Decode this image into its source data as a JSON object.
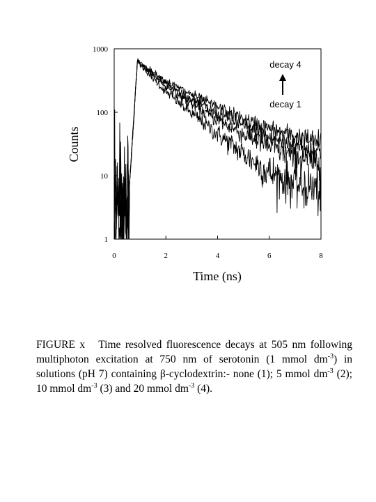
{
  "chart_data": {
    "type": "line",
    "title": "",
    "xlabel": "Time (ns)",
    "ylabel": "Counts",
    "xlim": [
      0,
      8
    ],
    "ylim": [
      1,
      1000
    ],
    "yscale": "log",
    "x_ticks": [
      "0",
      "2",
      "4",
      "6",
      "8"
    ],
    "y_ticks": [
      "1",
      "10",
      "100",
      "1000"
    ],
    "grid": false,
    "legend": "none",
    "annotations": {
      "top": "decay 4",
      "bottom": "decay 1"
    },
    "peak": {
      "x": 0.9,
      "y": 660
    },
    "series": [
      {
        "x": [
          1,
          2,
          3,
          4,
          5,
          6,
          7,
          8
        ],
        "values": [
          560,
          210,
          95,
          45,
          22,
          11,
          7.5,
          6
        ]
      },
      {
        "x": [
          1,
          2,
          3,
          4,
          5,
          6,
          7,
          8
        ],
        "values": [
          580,
          260,
          135,
          75,
          45,
          29,
          20,
          16
        ]
      },
      {
        "x": [
          1,
          2,
          3,
          4,
          5,
          6,
          7,
          8
        ],
        "values": [
          590,
          280,
          160,
          95,
          60,
          40,
          30,
          24
        ]
      },
      {
        "x": [
          1,
          2,
          3,
          4,
          5,
          6,
          7,
          8
        ],
        "values": [
          600,
          310,
          190,
          120,
          78,
          55,
          42,
          33
        ]
      }
    ]
  },
  "caption": {
    "label": "FIGURE x",
    "p1": "Time resolved fluorescence decays at 505 nm following multiphoton excitation at 750 nm of serotonin (1 mmol dm",
    "sup1": "-3",
    "p2": ") in solutions (pH 7) containing ",
    "beta": "β",
    "p3": "-cyclodextrin:- none (1); 5 mmol dm",
    "sup2": "-3",
    "p4": " (2); 10 mmol dm",
    "sup3": "-3",
    "p5": " (3) and 20 mmol dm",
    "sup4": "-3",
    "p6": " (4)."
  }
}
